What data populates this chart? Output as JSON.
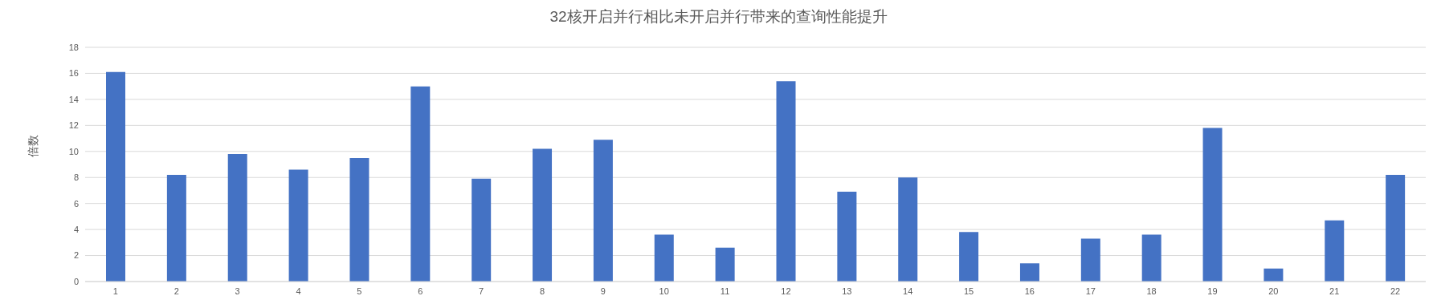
{
  "chart_data": {
    "type": "bar",
    "title": "32核开启并行相比未开启并行带来的查询性能提升",
    "ylabel": "倍数",
    "categories": [
      "1",
      "2",
      "3",
      "4",
      "5",
      "6",
      "7",
      "8",
      "9",
      "10",
      "11",
      "12",
      "13",
      "14",
      "15",
      "16",
      "17",
      "18",
      "19",
      "20",
      "21",
      "22"
    ],
    "values": [
      16.1,
      8.2,
      9.8,
      8.6,
      9.5,
      15.0,
      7.9,
      10.2,
      10.9,
      3.6,
      2.6,
      15.4,
      6.9,
      8.0,
      3.8,
      1.4,
      3.3,
      3.6,
      11.8,
      1.0,
      4.7,
      8.2
    ],
    "color": "#4472c4",
    "ylim": [
      0,
      18
    ],
    "yticks": [
      0,
      2,
      4,
      6,
      8,
      10,
      12,
      14,
      16,
      18
    ],
    "grid": "y",
    "legend": false
  }
}
